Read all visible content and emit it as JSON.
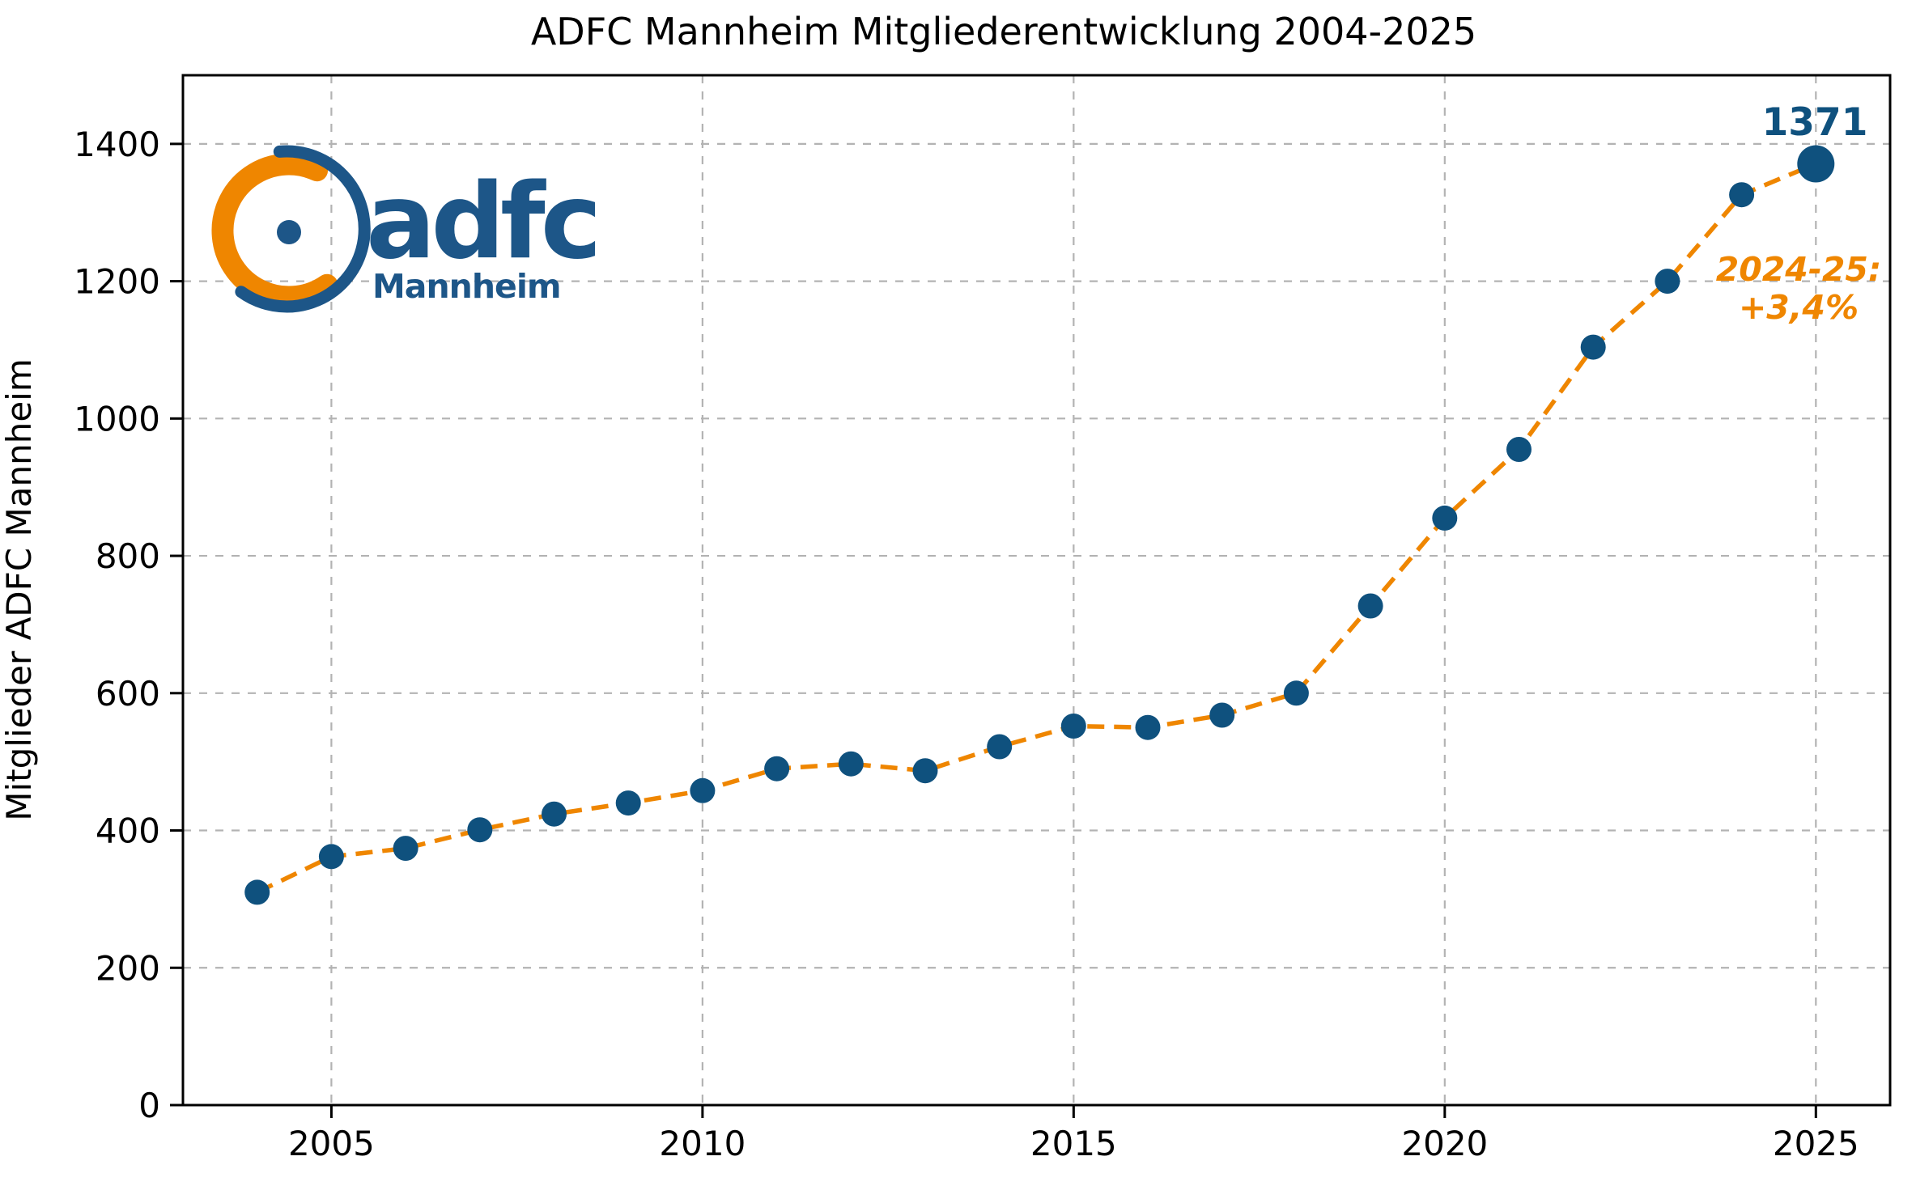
{
  "title": "ADFC Mannheim Mitgliederentwicklung 2004-2025",
  "y_axis_label": "Mitglieder ADFC Mannheim",
  "logo": {
    "brand": "adfc",
    "city": "Mannheim"
  },
  "colors": {
    "orange": "#ef8600",
    "blue": "#0f517e",
    "logo_blue": "#1d5688",
    "grid": "#b3b3b3",
    "axis": "#000000",
    "background": "#ffffff"
  },
  "chart_data": {
    "type": "line",
    "title": "ADFC Mannheim Mitgliederentwicklung 2004-2025",
    "xlabel": "",
    "ylabel": "Mitglieder ADFC Mannheim",
    "x": [
      2004,
      2005,
      2006,
      2007,
      2008,
      2009,
      2010,
      2011,
      2012,
      2013,
      2014,
      2015,
      2016,
      2017,
      2018,
      2019,
      2020,
      2021,
      2022,
      2023,
      2024,
      2025
    ],
    "values": [
      310,
      362,
      374,
      401,
      424,
      440,
      458,
      490,
      497,
      487,
      522,
      552,
      550,
      568,
      600,
      727,
      855,
      955,
      1104,
      1200,
      1326,
      1371
    ],
    "xlim": [
      2003,
      2026
    ],
    "ylim": [
      0,
      1500
    ],
    "x_ticks": [
      2005,
      2010,
      2015,
      2020,
      2025
    ],
    "y_ticks": [
      0,
      200,
      400,
      600,
      800,
      1000,
      1200,
      1400
    ],
    "grid": true,
    "line_style": "dashed",
    "marker": "circle",
    "legend": "none",
    "last_point_emphasized": true,
    "last_point_label": "1371",
    "annotation": {
      "line1": "2024-25:",
      "line2": "+3,4%"
    }
  }
}
